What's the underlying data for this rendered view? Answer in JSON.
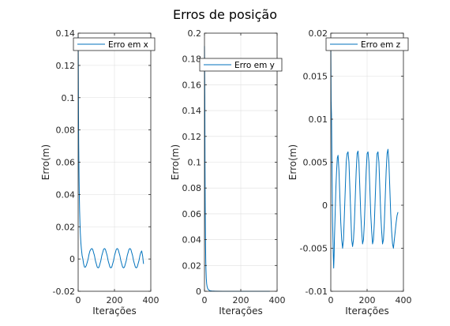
{
  "figure": {
    "title": "Erros de posição",
    "line_color": "#0072BD",
    "grid_color": "#dfdfdf",
    "axis_color": "#262626"
  },
  "chart_data": [
    {
      "type": "line",
      "title": "",
      "xlabel": "Iterações",
      "ylabel": "Erro(m)",
      "xlim": [
        0,
        400
      ],
      "ylim": [
        -0.02,
        0.14
      ],
      "xticks": [
        0,
        200,
        400
      ],
      "xticklabels": [
        "0",
        "200",
        "400"
      ],
      "yticks": [
        -0.02,
        0,
        0.02,
        0.04,
        0.06,
        0.08,
        0.1,
        0.12,
        0.14
      ],
      "yticklabels": [
        "-0.02",
        "0",
        "0.02",
        "0.04",
        "0.06",
        "0.08",
        "0.1",
        "0.12",
        "0.14"
      ],
      "grid": true,
      "legend_position": "top-right",
      "series": [
        {
          "name": "Erro em x",
          "color": "#0072BD",
          "x": [
            0,
            1,
            2,
            3,
            4,
            5,
            6,
            8,
            10,
            12,
            15,
            18,
            22,
            26,
            30,
            35,
            40,
            45,
            50,
            55,
            60,
            65,
            70,
            75,
            80,
            85,
            90,
            95,
            100,
            105,
            110,
            115,
            120,
            125,
            130,
            135,
            140,
            145,
            150,
            155,
            160,
            165,
            170,
            175,
            180,
            185,
            190,
            195,
            200,
            205,
            210,
            215,
            220,
            225,
            230,
            235,
            240,
            245,
            250,
            255,
            260,
            265,
            270,
            275,
            280,
            285,
            290,
            295,
            300,
            305,
            310,
            315,
            320,
            325,
            330,
            335,
            340,
            345,
            350,
            355,
            360
          ],
          "values": [
            0.138,
            0.12,
            0.09,
            0.071,
            0.06,
            0.05,
            0.042,
            0.03,
            0.022,
            0.016,
            0.01,
            0.006,
            0.002,
            0.0,
            -0.003,
            -0.005,
            -0.005,
            -0.004,
            -0.002,
            0.0,
            0.003,
            0.005,
            0.006,
            0.0065,
            0.006,
            0.004,
            0.002,
            -0.001,
            -0.003,
            -0.005,
            -0.0055,
            -0.005,
            -0.003,
            -0.001,
            0.002,
            0.004,
            0.006,
            0.0065,
            0.006,
            0.004,
            0.002,
            -0.001,
            -0.003,
            -0.005,
            -0.0055,
            -0.005,
            -0.003,
            -0.001,
            0.002,
            0.004,
            0.006,
            0.0065,
            0.006,
            0.004,
            0.002,
            -0.001,
            -0.003,
            -0.005,
            -0.0055,
            -0.005,
            -0.003,
            -0.001,
            0.002,
            0.004,
            0.006,
            0.0065,
            0.006,
            0.004,
            0.002,
            -0.001,
            -0.003,
            -0.005,
            -0.0055,
            -0.005,
            -0.003,
            -0.001,
            0.002,
            0.004,
            0.005,
            0.002,
            -0.003
          ]
        }
      ]
    },
    {
      "type": "line",
      "title": "",
      "xlabel": "Iterações",
      "ylabel": "Erro(m)",
      "xlim": [
        0,
        400
      ],
      "ylim": [
        0,
        0.2
      ],
      "xticks": [
        0,
        200,
        400
      ],
      "xticklabels": [
        "0",
        "200",
        "400"
      ],
      "yticks": [
        0,
        0.02,
        0.04,
        0.06,
        0.08,
        0.1,
        0.12,
        0.14,
        0.16,
        0.18,
        0.2
      ],
      "yticklabels": [
        "0",
        "0.02",
        "0.04",
        "0.06",
        "0.08",
        "0.1",
        "0.12",
        "0.14",
        "0.16",
        "0.18",
        "0.2"
      ],
      "grid": true,
      "legend_position": "top-right",
      "series": [
        {
          "name": "Erro em y",
          "color": "#0072BD",
          "x": [
            0,
            1,
            2,
            3,
            4,
            5,
            6,
            7,
            8,
            10,
            12,
            14,
            16,
            18,
            20,
            24,
            28,
            32,
            40,
            60,
            100,
            150,
            200,
            250,
            300,
            360
          ],
          "values": [
            0.19,
            0.17,
            0.15,
            0.096,
            0.07,
            0.05,
            0.035,
            0.025,
            0.018,
            0.01,
            0.006,
            0.004,
            0.003,
            0.002,
            0.0015,
            0.001,
            0.0006,
            0.0004,
            0.0002,
            0.0001,
            0.0,
            0.0,
            0.0,
            0.0,
            0.0,
            0.0
          ]
        }
      ]
    },
    {
      "type": "line",
      "title": "",
      "xlabel": "Iterações",
      "ylabel": "Erro(m)",
      "xlim": [
        0,
        400
      ],
      "ylim": [
        -0.01,
        0.02
      ],
      "xticks": [
        0,
        200,
        400
      ],
      "xticklabels": [
        "0",
        "200",
        "400"
      ],
      "yticks": [
        -0.01,
        -0.005,
        0,
        0.005,
        0.01,
        0.015,
        0.02
      ],
      "yticklabels": [
        "-0.01",
        "-0.005",
        "0",
        "0.005",
        "0.01",
        "0.015",
        "0.02"
      ],
      "grid": true,
      "legend_position": "top-right",
      "series": [
        {
          "name": "Erro em z",
          "color": "#0072BD",
          "x": [
            0,
            2,
            4,
            6,
            8,
            10,
            12,
            14,
            16,
            18,
            20,
            24,
            28,
            32,
            36,
            40,
            45,
            50,
            55,
            60,
            65,
            70,
            75,
            80,
            85,
            90,
            95,
            100,
            105,
            110,
            115,
            120,
            125,
            130,
            135,
            140,
            145,
            150,
            155,
            160,
            165,
            170,
            175,
            180,
            185,
            190,
            195,
            200,
            205,
            210,
            215,
            220,
            225,
            230,
            235,
            240,
            245,
            250,
            255,
            260,
            265,
            270,
            275,
            280,
            285,
            290,
            295,
            300,
            305,
            310,
            315,
            320,
            325,
            330,
            335,
            340,
            345,
            350,
            355,
            360,
            365,
            370
          ],
          "values": [
            0.019,
            0.012,
            0.0105,
            0.006,
            0.002,
            -0.002,
            -0.004,
            -0.006,
            -0.0073,
            -0.006,
            -0.004,
            -0.001,
            0.002,
            0.004,
            0.0055,
            0.0058,
            0.004,
            0.001,
            -0.002,
            -0.004,
            -0.005,
            -0.004,
            -0.001,
            0.002,
            0.005,
            0.006,
            0.0062,
            0.005,
            0.002,
            -0.001,
            -0.004,
            -0.0048,
            -0.004,
            -0.002,
            0.001,
            0.004,
            0.006,
            0.0063,
            0.005,
            0.002,
            -0.001,
            -0.003,
            -0.0045,
            -0.004,
            -0.002,
            0.001,
            0.004,
            0.006,
            0.0062,
            0.005,
            0.002,
            -0.001,
            -0.003,
            -0.0045,
            -0.004,
            -0.002,
            0.001,
            0.004,
            0.006,
            0.0062,
            0.005,
            0.002,
            -0.001,
            -0.003,
            -0.0045,
            -0.004,
            -0.002,
            0.001,
            0.004,
            0.006,
            0.0065,
            0.005,
            0.002,
            -0.001,
            -0.003,
            -0.0045,
            -0.005,
            -0.004,
            -0.003,
            -0.002,
            -0.0012,
            -0.0008
          ]
        }
      ]
    }
  ]
}
